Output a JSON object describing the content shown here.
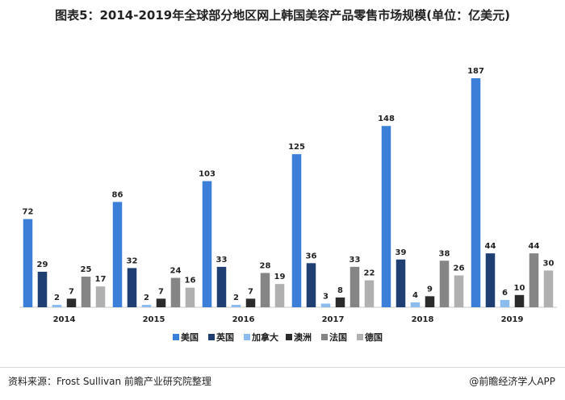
{
  "title": "图表5：2014-2019年全球部分地区网上韩国美容产品零售市场规模(单位：亿美元)",
  "source": "资料来源：Frost Sullivan 前瞻产业研究院整理",
  "brand": "@前瞻经济学人APP",
  "chart_data": {
    "type": "bar",
    "categories": [
      "2014",
      "2015",
      "2016",
      "2017",
      "2018",
      "2019"
    ],
    "series": [
      {
        "name": "美国",
        "color": "#3b7fd9",
        "values": [
          72,
          86,
          103,
          125,
          148,
          187
        ]
      },
      {
        "name": "英国",
        "color": "#1f3f73",
        "values": [
          29,
          32,
          33,
          36,
          39,
          44
        ]
      },
      {
        "name": "加拿大",
        "color": "#8cbcee",
        "values": [
          2,
          2,
          2,
          3,
          4,
          6
        ]
      },
      {
        "name": "澳洲",
        "color": "#2b2b2b",
        "values": [
          7,
          7,
          7,
          8,
          9,
          10
        ]
      },
      {
        "name": "法国",
        "color": "#858585",
        "values": [
          25,
          24,
          28,
          33,
          38,
          44
        ]
      },
      {
        "name": "德国",
        "color": "#b0b0b0",
        "values": [
          17,
          16,
          19,
          22,
          26,
          30
        ]
      }
    ],
    "ylim": [
      0,
      187
    ],
    "grid": false,
    "legend": "bottom-center"
  }
}
